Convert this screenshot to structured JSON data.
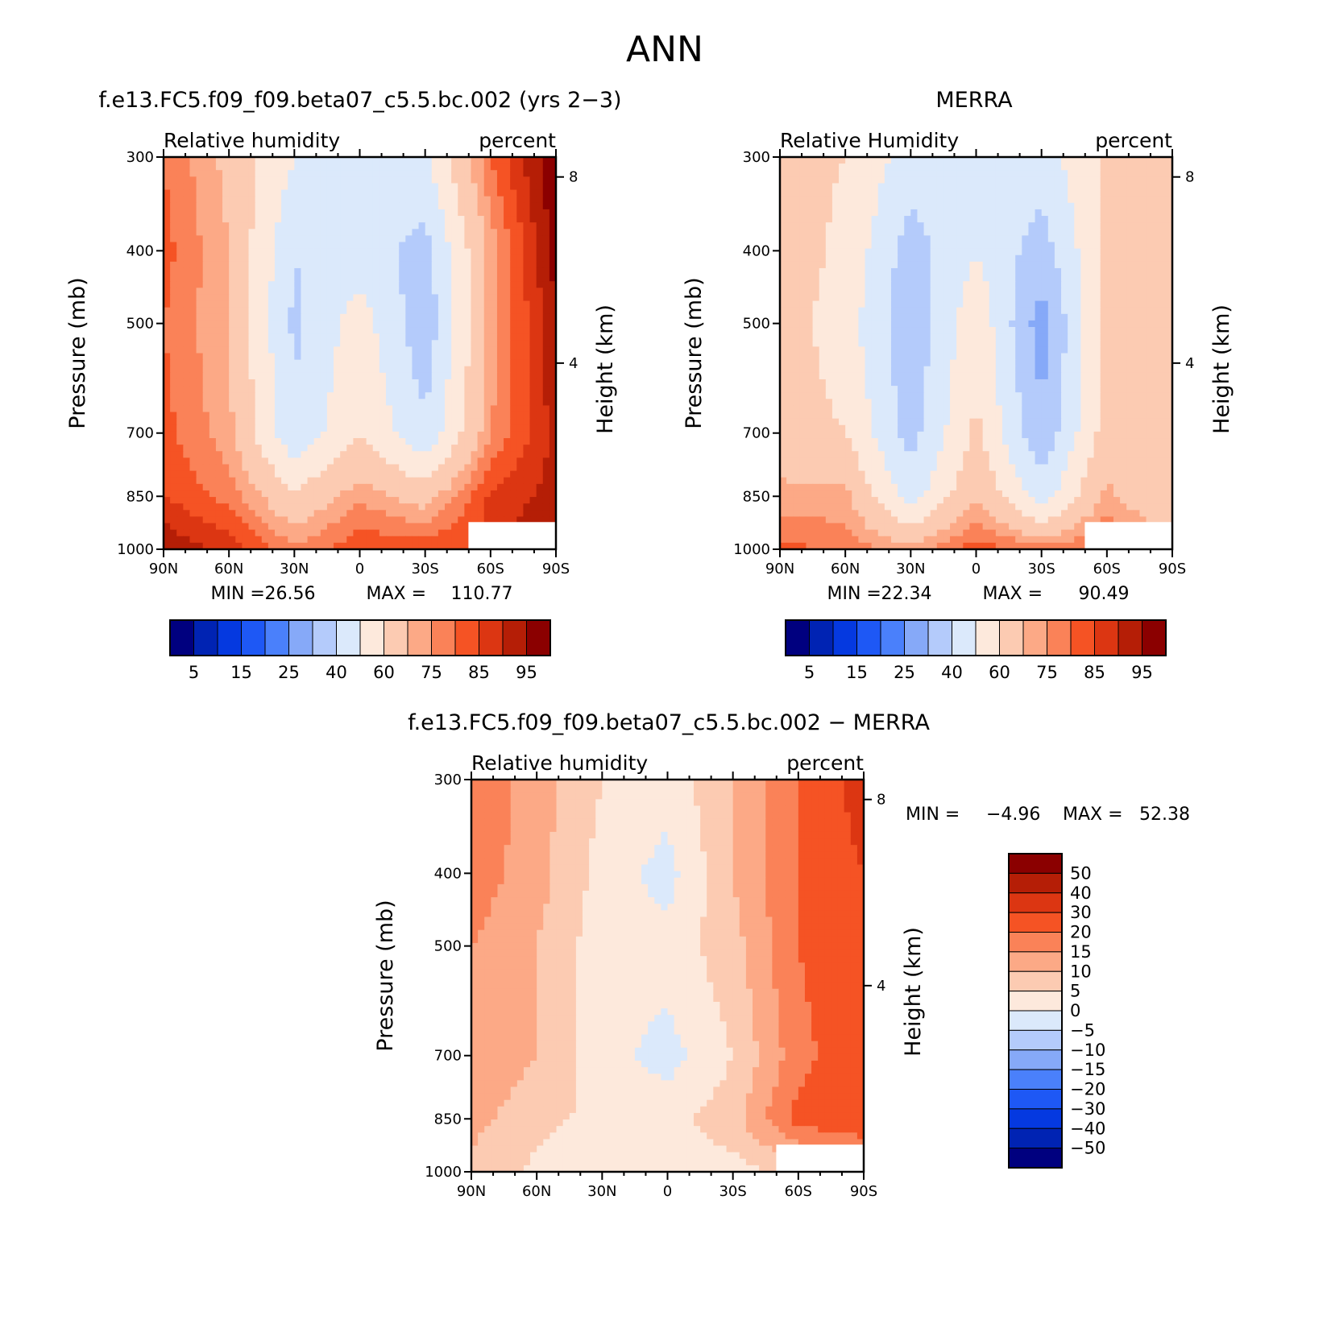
{
  "suptitle": "ANN",
  "panels": [
    {
      "id": "model",
      "title": "f.e13.FC5.f09_f09.beta07_c5.5.bc.002 (yrs 2−3)",
      "left_label": "Relative humidity",
      "right_label": "percent",
      "min_label": "MIN =",
      "min_value": "26.56",
      "max_label": "MAX =",
      "max_value": "110.77"
    },
    {
      "id": "obs",
      "title": "MERRA",
      "left_label": "Relative Humidity",
      "right_label": "percent",
      "min_label": "MIN =",
      "min_value": "22.34",
      "max_label": "MAX =",
      "max_value": "90.49"
    },
    {
      "id": "diff",
      "title": "f.e13.FC5.f09_f09.beta07_c5.5.bc.002 − MERRA",
      "left_label": "Relative humidity",
      "right_label": "percent",
      "min_label": "MIN =",
      "min_value": "−4.96",
      "max_label": "MAX =",
      "max_value": "52.38"
    }
  ],
  "axes": {
    "ylabel": "Pressure (mb)",
    "y2label": "Height (km)",
    "pressure_ticks": [
      "300",
      "400",
      "500",
      "700",
      "850",
      "1000"
    ],
    "height_ticks": [
      "8",
      "4"
    ],
    "lat_ticks": [
      "90N",
      "60N",
      "30N",
      "0",
      "30S",
      "60S",
      "90S"
    ]
  },
  "colorbars": {
    "abs_labels": [
      "5",
      "15",
      "25",
      "40",
      "60",
      "75",
      "85",
      "95"
    ],
    "abs_colors": [
      "#00007f",
      "#0023b3",
      "#0539e0",
      "#1e58f5",
      "#4a80fb",
      "#86a9f8",
      "#b4cbfb",
      "#dbe9fb",
      "#fde9dc",
      "#fccbb2",
      "#fca986",
      "#fa8258",
      "#f55324",
      "#dc3612",
      "#b51e06",
      "#8b0000"
    ],
    "diff_labels": [
      "50",
      "40",
      "30",
      "20",
      "15",
      "10",
      "5",
      "0",
      "−5",
      "−10",
      "−15",
      "−20",
      "−30",
      "−40",
      "−50"
    ],
    "diff_colors": [
      "#8b0000",
      "#b51e06",
      "#dc3612",
      "#f55324",
      "#fa8258",
      "#fca986",
      "#fccbb2",
      "#fde9dc",
      "#dbe9fb",
      "#b4cbfb",
      "#86a9f8",
      "#4a80fb",
      "#1e58f5",
      "#0539e0",
      "#0023b3",
      "#00007f"
    ]
  },
  "chart_data": [
    {
      "type": "heatmap",
      "title": "f.e13.FC5.f09_f09.beta07_c5.5.bc.002 (yrs 2−3)",
      "ylabel": "Pressure (mb)",
      "x": [
        "90N",
        "60N",
        "30N",
        "0",
        "30S",
        "60S",
        "90S"
      ],
      "y": [
        1000,
        850,
        700,
        500,
        400,
        300
      ],
      "z": [
        [
          95,
          88,
          76,
          84,
          84,
          86,
          100
        ],
        [
          85,
          78,
          62,
          74,
          66,
          86,
          92
        ],
        [
          82,
          72,
          42,
          60,
          42,
          75,
          92
        ],
        [
          80,
          70,
          38,
          55,
          33,
          72,
          95
        ],
        [
          82,
          70,
          40,
          45,
          36,
          72,
          97
        ],
        [
          80,
          68,
          50,
          45,
          48,
          80,
          100
        ]
      ],
      "units": "percent",
      "min": 26.56,
      "max": 110.77
    },
    {
      "type": "heatmap",
      "title": "MERRA",
      "ylabel": "Pressure (mb)",
      "x": [
        "90N",
        "60N",
        "30N",
        "0",
        "30S",
        "60S",
        "90S"
      ],
      "y": [
        1000,
        850,
        700,
        500,
        400,
        300
      ],
      "z": [
        [
          82,
          78,
          72,
          83,
          77,
          82,
          75
        ],
        [
          72,
          72,
          45,
          70,
          45,
          72,
          60
        ],
        [
          65,
          60,
          36,
          62,
          32,
          65,
          62
        ],
        [
          65,
          55,
          32,
          58,
          25,
          65,
          62
        ],
        [
          65,
          58,
          35,
          50,
          35,
          62,
          65
        ],
        [
          62,
          60,
          45,
          45,
          45,
          62,
          60
        ]
      ],
      "units": "percent",
      "min": 22.34,
      "max": 90.49
    },
    {
      "type": "heatmap",
      "title": "f.e13.FC5.f09_f09.beta07_c5.5.bc.002 − MERRA",
      "ylabel": "Pressure (mb)",
      "x": [
        "90N",
        "60N",
        "30N",
        "0",
        "30S",
        "60S",
        "90S"
      ],
      "y": [
        1000,
        850,
        700,
        500,
        400,
        300
      ],
      "z": [
        [
          8,
          4,
          0,
          3,
          3,
          6,
          10
        ],
        [
          12,
          6,
          4,
          3,
          8,
          22,
          25
        ],
        [
          15,
          10,
          2,
          -2,
          5,
          18,
          25
        ],
        [
          15,
          10,
          2,
          2,
          8,
          20,
          25
        ],
        [
          18,
          12,
          3,
          -2,
          10,
          20,
          30
        ],
        [
          20,
          12,
          5,
          2,
          10,
          20,
          35
        ]
      ],
      "units": "percent",
      "min": -4.96,
      "max": 52.38
    }
  ]
}
